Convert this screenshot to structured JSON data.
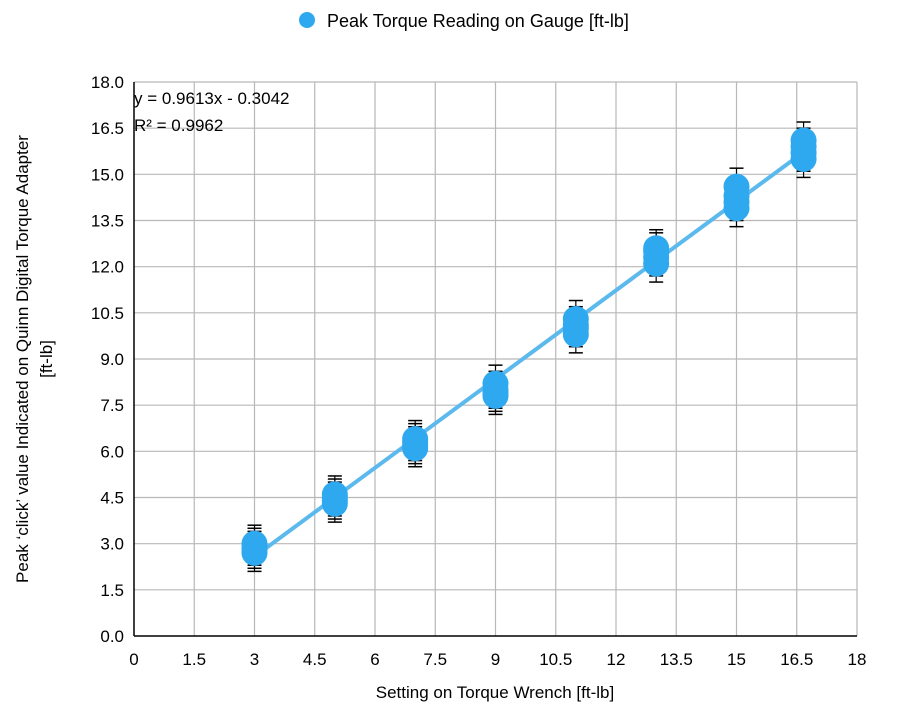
{
  "chart_data": {
    "type": "scatter",
    "title": "",
    "legend": {
      "label": "Peak Torque Reading on Gauge [ft-lb]",
      "position": "top"
    },
    "xlabel": "Setting on Torque Wrench [ft-lb]",
    "ylabel_line1": "Peak ‘click’ value  Indicated on Quinn Digital Torque Adapter",
    "ylabel_line2": "[ft-lb]",
    "xlim": [
      0,
      18
    ],
    "ylim": [
      0,
      18
    ],
    "x_ticks": [
      0,
      1.5,
      3,
      4.5,
      6,
      7.5,
      9,
      10.5,
      12,
      13.5,
      15,
      16.5,
      18
    ],
    "x_tick_labels": [
      "0",
      "1.5",
      "3",
      "4.5",
      "6",
      "7.5",
      "9",
      "10.5",
      "12",
      "13.5",
      "15",
      "16.5",
      "18"
    ],
    "y_ticks": [
      0,
      1.5,
      3,
      4.5,
      6,
      7.5,
      9,
      10.5,
      12,
      13.5,
      15,
      16.5,
      18
    ],
    "y_tick_labels": [
      "0.0",
      "1.5",
      "3.0",
      "4.5",
      "6.0",
      "7.5",
      "9.0",
      "10.5",
      "12.0",
      "13.5",
      "15.0",
      "16.5",
      "18.0"
    ],
    "grid": true,
    "trendline": {
      "slope": 0.9613,
      "intercept": -0.3042,
      "x_range": [
        3,
        16.67
      ]
    },
    "equation_text": "y = 0.9613x - 0.3042",
    "r2_text": "R² = 0.9962",
    "error_bar_halfwidth": 0.6,
    "series": [
      {
        "name": "Peak Torque Reading on Gauge [ft-lb]",
        "color": "#2ea9ef",
        "points": [
          {
            "x": 3,
            "y": 2.7
          },
          {
            "x": 3,
            "y": 2.8
          },
          {
            "x": 3,
            "y": 2.9
          },
          {
            "x": 3,
            "y": 3.0
          },
          {
            "x": 5,
            "y": 4.3
          },
          {
            "x": 5,
            "y": 4.4
          },
          {
            "x": 5,
            "y": 4.5
          },
          {
            "x": 5,
            "y": 4.6
          },
          {
            "x": 7,
            "y": 6.1
          },
          {
            "x": 7,
            "y": 6.2
          },
          {
            "x": 7,
            "y": 6.3
          },
          {
            "x": 7,
            "y": 6.4
          },
          {
            "x": 9,
            "y": 7.8
          },
          {
            "x": 9,
            "y": 7.9
          },
          {
            "x": 9,
            "y": 8.0
          },
          {
            "x": 9,
            "y": 8.2
          },
          {
            "x": 11,
            "y": 9.8
          },
          {
            "x": 11,
            "y": 10.0
          },
          {
            "x": 11,
            "y": 10.1
          },
          {
            "x": 11,
            "y": 10.3
          },
          {
            "x": 13,
            "y": 12.1
          },
          {
            "x": 13,
            "y": 12.3
          },
          {
            "x": 13,
            "y": 12.5
          },
          {
            "x": 13,
            "y": 12.6
          },
          {
            "x": 15,
            "y": 13.9
          },
          {
            "x": 15,
            "y": 14.1
          },
          {
            "x": 15,
            "y": 14.3
          },
          {
            "x": 15,
            "y": 14.6
          },
          {
            "x": 16.67,
            "y": 15.5
          },
          {
            "x": 16.67,
            "y": 15.7
          },
          {
            "x": 16.67,
            "y": 15.9
          },
          {
            "x": 16.67,
            "y": 16.1
          }
        ]
      }
    ]
  }
}
